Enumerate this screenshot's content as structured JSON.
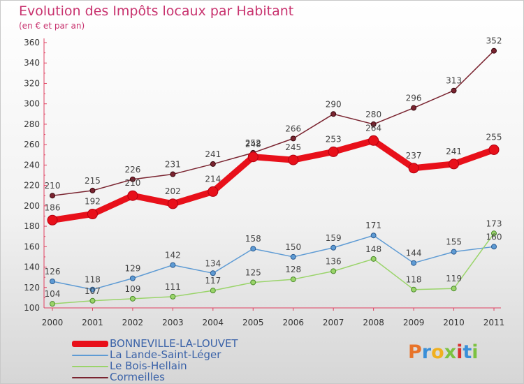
{
  "chart_data": {
    "type": "line",
    "title": "Evolution des Impôts locaux par Habitant",
    "subtitle": "(en € et par an)",
    "categories": [
      "2000",
      "2001",
      "2002",
      "2003",
      "2004",
      "2005",
      "2006",
      "2007",
      "2008",
      "2009",
      "2010",
      "2011"
    ],
    "ylim": [
      100,
      360
    ],
    "yticks": [
      100,
      120,
      140,
      160,
      180,
      200,
      220,
      240,
      260,
      280,
      300,
      320,
      340,
      360
    ],
    "grid": false,
    "legend_position": "bottom-left",
    "series": [
      {
        "name": "BONNEVILLE-LA-LOUVET",
        "color": "#e8101a",
        "values": [
          186,
          192,
          210,
          202,
          214,
          248,
          245,
          253,
          264,
          237,
          241,
          255
        ]
      },
      {
        "name": "La Lande-Saint-Léger",
        "color": "#5e9bd4",
        "values": [
          126,
          118,
          129,
          142,
          134,
          158,
          150,
          159,
          171,
          144,
          155,
          160
        ]
      },
      {
        "name": "Le Bois-Hellain",
        "color": "#9ad46a",
        "values": [
          104,
          107,
          109,
          111,
          117,
          125,
          128,
          136,
          148,
          118,
          119,
          173
        ]
      },
      {
        "name": "Cormeilles",
        "color": "#7a2430",
        "values": [
          210,
          215,
          226,
          231,
          241,
          252,
          266,
          290,
          280,
          296,
          313,
          352
        ]
      }
    ],
    "data_labels": {
      "BONNEVILLE-LA-LOUVET": [
        "186",
        "192",
        "210",
        "202",
        "214",
        "248",
        "245",
        "253",
        "264",
        "237",
        "241",
        "255"
      ],
      "La Lande-Saint-Léger": [
        "126",
        "118",
        "129",
        "142",
        "134",
        "158",
        "150",
        "159",
        "171",
        "144",
        "155",
        "160"
      ],
      "Le Bois-Hellain": [
        "104",
        "107",
        "109",
        "111",
        "117",
        "125",
        "128",
        "136",
        "148",
        "118",
        "119",
        "173"
      ],
      "Cormeilles": [
        "210",
        "215",
        "226",
        "231",
        "241",
        "252",
        "266",
        "290",
        "280",
        "296",
        "313",
        "352"
      ]
    }
  },
  "logo": {
    "text": "Proxiti",
    "letters": [
      "P",
      "r",
      "o",
      "x",
      "i",
      "t",
      "i"
    ]
  }
}
